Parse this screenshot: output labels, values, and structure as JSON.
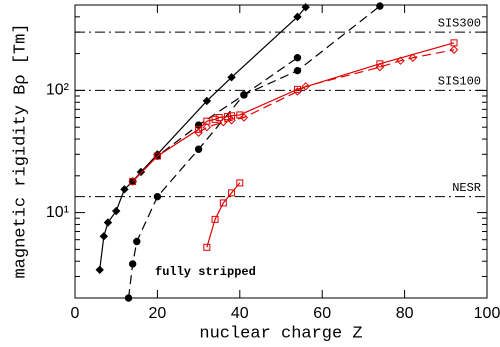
{
  "chart_data": {
    "type": "line",
    "x_label": "nuclear charge Z",
    "y_label": "magnetic rigidity Bρ [Tm]",
    "annotation": "fully stripped",
    "log_y": true,
    "xlim": [
      0,
      100
    ],
    "xticks": [
      0,
      20,
      40,
      60,
      80,
      100
    ],
    "ylim": [
      2,
      500
    ],
    "yticks": [
      {
        "value": 10,
        "label": "10¹"
      },
      {
        "value": 100,
        "label": "10²"
      }
    ],
    "yminorticks": [
      2,
      3,
      4,
      5,
      6,
      7,
      8,
      9,
      20,
      30,
      40,
      50,
      60,
      70,
      80,
      90,
      200,
      300,
      400,
      500
    ],
    "hlines": [
      {
        "label": "SIS300",
        "value": 300
      },
      {
        "label": "SIS100",
        "value": 100
      },
      {
        "label": "NESR",
        "value": 13.5
      }
    ],
    "series": [
      {
        "color": "#000000",
        "dash": "solid",
        "marker": "diamond",
        "x": [
          6,
          7,
          8,
          10,
          12,
          14,
          16,
          20,
          32,
          38,
          54,
          56
        ],
        "values": [
          3.4,
          6.4,
          8.3,
          10.3,
          15.5,
          18,
          21.5,
          30,
          82,
          128,
          400,
          480
        ]
      },
      {
        "color": "#000000",
        "dash": "dashed",
        "marker": "circle",
        "x": [
          13,
          14,
          15,
          20,
          30,
          41,
          54,
          74
        ],
        "values": [
          2,
          3.8,
          5.8,
          13.5,
          33,
          92,
          145,
          490
        ]
      },
      {
        "color": "#000000",
        "dash": "dashed",
        "marker": "circle",
        "x": [
          14,
          20,
          30,
          41,
          54
        ],
        "values": [
          18,
          29,
          52,
          92,
          185
        ]
      },
      {
        "color": "#e00000",
        "dash": "solid",
        "marker": "square",
        "x": [
          14,
          20,
          30,
          32,
          34,
          35,
          37,
          38,
          40,
          54,
          74,
          92
        ],
        "values": [
          18,
          29,
          48,
          56,
          58,
          60,
          61,
          62,
          63,
          102,
          165,
          245
        ]
      },
      {
        "color": "#e00000",
        "dash": "dashed",
        "marker": "diamond",
        "x": [
          30,
          32,
          36,
          38,
          41,
          54,
          56,
          74,
          79,
          82,
          92
        ],
        "values": [
          45,
          50,
          55,
          57,
          60,
          98,
          108,
          155,
          175,
          185,
          215
        ]
      },
      {
        "color": "#e00000",
        "dash": "solid",
        "marker": "square",
        "x": [
          32,
          34,
          36,
          38,
          40
        ],
        "values": [
          5.2,
          8.8,
          12,
          14.5,
          17.5
        ]
      }
    ]
  }
}
